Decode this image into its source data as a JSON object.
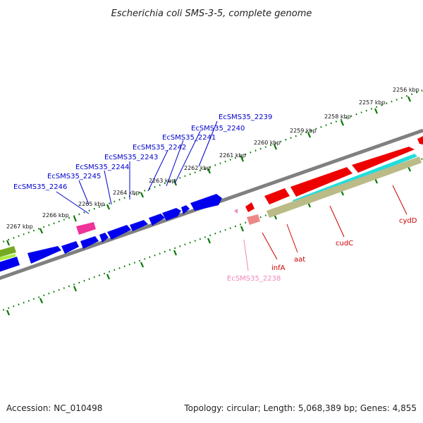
{
  "title": "Escherichia coli SMS-3-5, complete genome",
  "footer": {
    "accession": "Accession: NC_010498",
    "summary": "Topology: circular; Length: 5,068,389 bp; Genes: 4,855"
  },
  "ruler_labels": [
    "2256 kbp",
    "2257 kbp",
    "2258 kbp",
    "2259 kbp",
    "2260 kbp",
    "2261 kbp",
    "2262 kbp",
    "2263 kbp",
    "2264 kbp",
    "2265 kbp",
    "2266 kbp",
    "2267 kbp"
  ],
  "gene_labels_top": [
    "EcSMS35_2239",
    "EcSMS35_2240",
    "EcSMS35_2241",
    "EcSMS35_2242",
    "EcSMS35_2243",
    "EcSMS35_2244",
    "EcSMS35_2245",
    "EcSMS35_2246"
  ],
  "gene_labels_bottom": [
    "cydD",
    "cudC",
    "aat",
    "infA",
    "EcSMS35_2238"
  ],
  "colors": {
    "cds": "#0000ee",
    "red_gene": "#ee0000",
    "pink_gene": "#ee3399",
    "cyan_gene": "#22dddd",
    "olive_gene": "#bbbb88",
    "green_gene": "#77aa22",
    "backbone": "#808080",
    "ruler": "#007700",
    "label_blue": "#0000cc",
    "label_red": "#cc0000",
    "label_pink": "#ee88bb"
  }
}
